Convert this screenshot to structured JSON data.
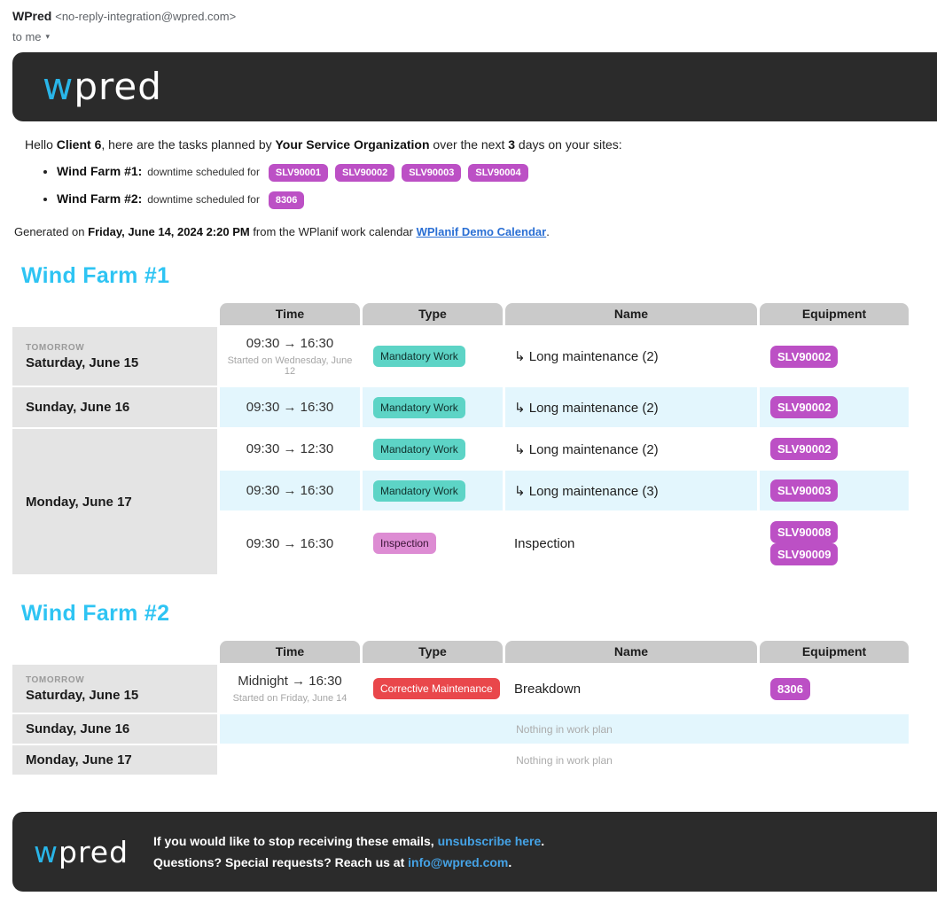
{
  "email_header": {
    "sender_name": "WPred",
    "sender_address": "<no-reply-integration@wpred.com>",
    "recipient": "to me"
  },
  "brand": {
    "logo_w": "w",
    "logo_rest": "pred"
  },
  "colors": {
    "accent_cyan": "#29b5e8",
    "heading_cyan": "#2ec4f3",
    "equipment_badge": "#bc50c5",
    "row_highlight": "#e3f6fd",
    "bar_dark": "#2b2b2b",
    "body_link": "#2a6fd4",
    "footer_link": "#45a3e6"
  },
  "greeting": {
    "prefix": "Hello ",
    "client": "Client 6",
    "mid1": ", here are the tasks planned by ",
    "org": "Your Service Organization",
    "mid2": " over the next ",
    "days": "3",
    "suffix": " days on your sites:"
  },
  "summary_items": [
    {
      "site": "Wind Farm #1",
      "colon": ":",
      "label": "downtime scheduled for",
      "badges": [
        "SLV90001",
        "SLV90002",
        "SLV90003",
        "SLV90004"
      ]
    },
    {
      "site": "Wind Farm #2",
      "colon": ":",
      "label": "downtime scheduled for",
      "badges": [
        "8306"
      ]
    }
  ],
  "generated": {
    "prefix": "Generated on ",
    "datetime": "Friday, June 14, 2024 2:20 PM",
    "mid": " from the WPlanif work calendar ",
    "link": "WPlanif Demo Calendar",
    "suffix": "."
  },
  "table_columns": [
    "Time",
    "Type",
    "Name",
    "Equipment"
  ],
  "task_types": {
    "mandatory": {
      "label": "Mandatory Work",
      "bg": "#5dd4c6",
      "fg": "#10302c"
    },
    "inspection": {
      "label": "Inspection",
      "bg": "#dd8cd3",
      "fg": "#3a1436"
    },
    "corrective": {
      "label": "Corrective Maintenance",
      "bg": "#e9474b",
      "fg": "#ffffff"
    }
  },
  "sections": [
    {
      "title": "Wind Farm #1",
      "days": [
        {
          "tag": "TOMORROW",
          "date": "Saturday, June 15",
          "tasks": [
            {
              "time": "09:30 → 16:30",
              "time_note": "Started on Wednesday, June 12",
              "type": "mandatory",
              "name": "↳ Long maintenance (2)",
              "equipment": [
                "SLV90002"
              ],
              "tone": "white"
            }
          ]
        },
        {
          "date": "Sunday, June 16",
          "tasks": [
            {
              "time": "09:30 → 16:30",
              "type": "mandatory",
              "name": "↳ Long maintenance (2)",
              "equipment": [
                "SLV90002"
              ],
              "tone": "blue"
            }
          ]
        },
        {
          "date": "Monday, June 17",
          "tasks": [
            {
              "time": "09:30 → 12:30",
              "type": "mandatory",
              "name": "↳ Long maintenance (2)",
              "equipment": [
                "SLV90002"
              ],
              "tone": "white"
            },
            {
              "time": "09:30 → 16:30",
              "type": "mandatory",
              "name": "↳ Long maintenance (3)",
              "equipment": [
                "SLV90003"
              ],
              "tone": "blue"
            },
            {
              "time": "09:30 → 16:30",
              "type": "inspection",
              "name": "Inspection",
              "equipment": [
                "SLV90008",
                "SLV90009"
              ],
              "tone": "white"
            }
          ]
        }
      ]
    },
    {
      "title": "Wind Farm #2",
      "days": [
        {
          "tag": "TOMORROW",
          "date": "Saturday, June 15",
          "tasks": [
            {
              "time": "Midnight → 16:30",
              "time_note": "Started on Friday, June 14",
              "type": "corrective",
              "name": "Breakdown",
              "equipment": [
                "8306"
              ],
              "tone": "white"
            }
          ]
        },
        {
          "date": "Sunday, June 16",
          "empty": "Nothing in work plan",
          "tone": "blue"
        },
        {
          "date": "Monday, June 17",
          "empty": "Nothing in work plan",
          "tone": "white"
        }
      ]
    }
  ],
  "footer": {
    "line1_prefix": "If you would like to stop receiving these emails, ",
    "unsubscribe_label": "unsubscribe here",
    "line1_suffix": ".",
    "line2_prefix": "Questions? Special requests? Reach us at ",
    "email_label": "info@wpred.com",
    "line2_suffix": "."
  }
}
